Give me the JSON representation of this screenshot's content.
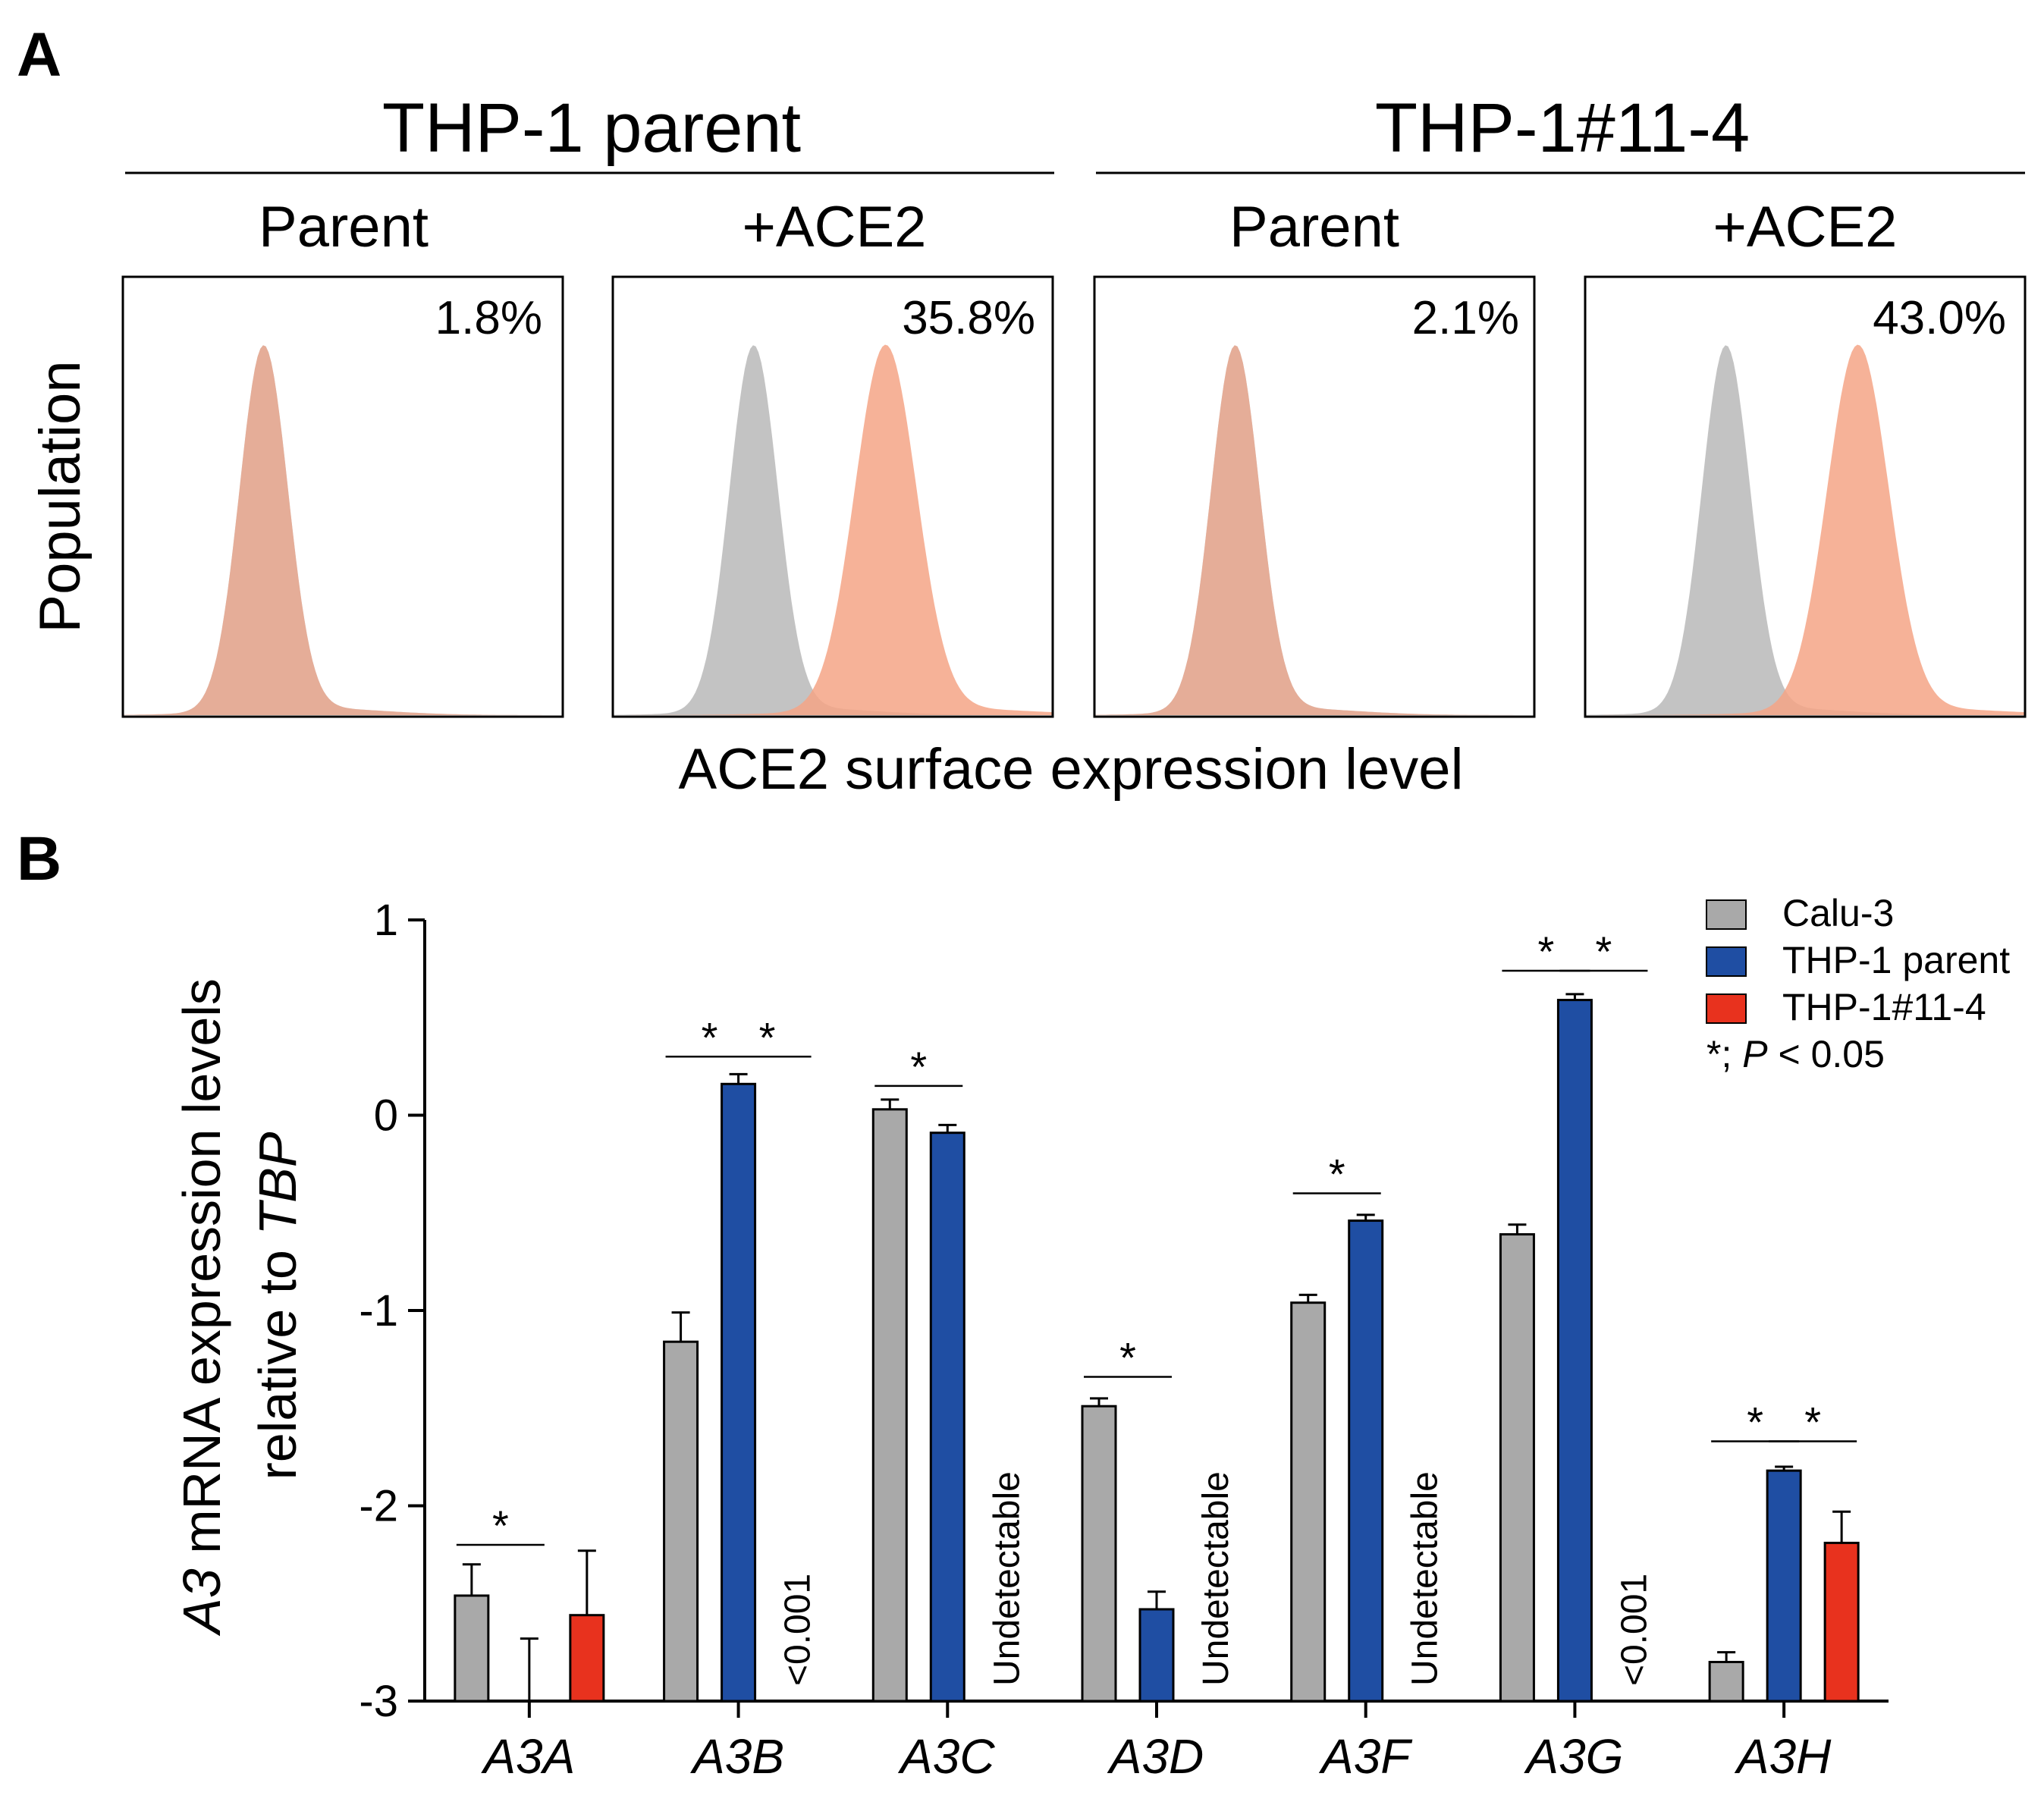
{
  "panel_a": {
    "label": "A",
    "groups": [
      {
        "title": "THP-1 parent",
        "panels": [
          {
            "subtitle": "Parent",
            "percent": "1.8%",
            "shift": 0.0
          },
          {
            "subtitle": "+ACE2",
            "percent": "35.8%",
            "shift": 0.3
          }
        ]
      },
      {
        "title": "THP-1#11-4",
        "panels": [
          {
            "subtitle": "Parent",
            "percent": "2.1%",
            "shift": 0.0
          },
          {
            "subtitle": "+ACE2",
            "percent": "43.0%",
            "shift": 0.3
          }
        ]
      }
    ],
    "ylabel": "Population",
    "xlabel": "ACE2 surface expression level",
    "colors": {
      "control": "#bdbdbd",
      "ace2": "#f4a486"
    }
  },
  "chart_data": {
    "type": "bar",
    "panel_label": "B",
    "categories": [
      "A3A",
      "A3B",
      "A3C",
      "A3D",
      "A3F",
      "A3G",
      "A3H"
    ],
    "ylabel_italic": "A3",
    "ylabel_line1": " mRNA expression levels",
    "ylabel_line2": "relative to ",
    "ylabel_italic2": "TBP",
    "ylim": [
      -3,
      1
    ],
    "yticks": [
      {
        "value": 1,
        "label": "1"
      },
      {
        "value": 0,
        "label": "0"
      },
      {
        "value": -1,
        "label": "-1"
      },
      {
        "value": -2,
        "label": "-2"
      },
      {
        "value": -3,
        "label": "-3"
      }
    ],
    "series": [
      {
        "name": "Calu-3",
        "color": "#a9a9a9",
        "values": [
          -2.46,
          -1.16,
          0.03,
          -1.49,
          -0.96,
          -0.61,
          -2.8
        ],
        "errors": [
          0.16,
          0.15,
          0.05,
          0.04,
          0.04,
          0.05,
          0.05
        ]
      },
      {
        "name": "THP-1 parent",
        "color": "#1f4ea3",
        "values": [
          null,
          0.16,
          -0.09,
          -2.53,
          -0.54,
          0.59,
          -1.82
        ],
        "errors": [
          0.32,
          0.05,
          0.04,
          0.09,
          0.03,
          0.03,
          0.02
        ]
      },
      {
        "name": "THP-1#11-4",
        "color": "#e8321e",
        "values": [
          -2.56,
          null,
          null,
          null,
          null,
          null,
          -2.19
        ],
        "errors": [
          0.33,
          0,
          0,
          0,
          0,
          0,
          0.16
        ]
      }
    ],
    "annotations": [
      {
        "category": 1,
        "series": 2,
        "text": "<0.001"
      },
      {
        "category": 2,
        "series": 2,
        "text": "Undetectable"
      },
      {
        "category": 3,
        "series": 2,
        "text": "Undetectable"
      },
      {
        "category": 4,
        "series": 2,
        "text": "Undetectable"
      },
      {
        "category": 5,
        "series": 2,
        "text": "<0.001"
      }
    ],
    "significance": [
      {
        "category": 0,
        "from": 0,
        "to": 1,
        "y": -2.2
      },
      {
        "category": 1,
        "from": 0,
        "to": 1,
        "y": 0.3
      },
      {
        "category": 1,
        "from": 1,
        "to": 2,
        "y": 0.3
      },
      {
        "category": 2,
        "from": 0,
        "to": 1,
        "y": 0.15
      },
      {
        "category": 3,
        "from": 0,
        "to": 1,
        "y": -1.34
      },
      {
        "category": 4,
        "from": 0,
        "to": 1,
        "y": -0.4
      },
      {
        "category": 5,
        "from": 0,
        "to": 1,
        "y": 0.74
      },
      {
        "category": 5,
        "from": 1,
        "to": 2,
        "y": 0.74
      },
      {
        "category": 6,
        "from": 0,
        "to": 1,
        "y": -1.67
      },
      {
        "category": 6,
        "from": 1,
        "to": 2,
        "y": -1.67
      }
    ],
    "sig_symbol": "*",
    "legend_position": "top-right",
    "legend_note_prefix": "*; ",
    "legend_note_p": "P",
    "legend_note_suffix": " < 0.05"
  }
}
